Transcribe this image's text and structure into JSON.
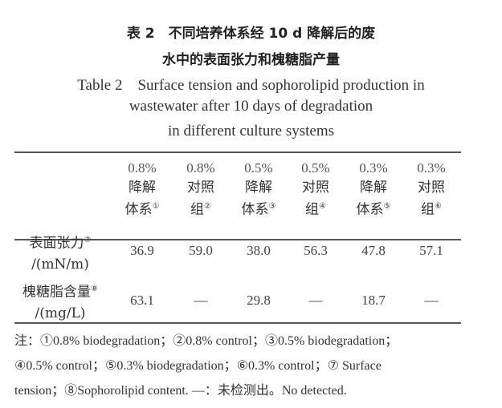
{
  "title": {
    "cn_line1": "表 2　不同培养体系经 10 d 降解后的废",
    "cn_line2": "水中的表面张力和槐糖脂产量",
    "en_line1": "Table 2　Surface tension and sophorolipid production in",
    "en_line2": "wastewater after 10 days of degradation",
    "en_line3": "in different culture systems"
  },
  "columns": [
    {
      "pct": "0.8%",
      "l1": "降解",
      "l2": "体系",
      "mark": "①"
    },
    {
      "pct": "0.8%",
      "l1": "对照",
      "l2": "组",
      "mark": "②"
    },
    {
      "pct": "0.5%",
      "l1": "降解",
      "l2": "体系",
      "mark": "③"
    },
    {
      "pct": "0.5%",
      "l1": "对照",
      "l2": "组",
      "mark": "④"
    },
    {
      "pct": "0.3%",
      "l1": "降解",
      "l2": "体系",
      "mark": "⑤"
    },
    {
      "pct": "0.3%",
      "l1": "对照",
      "l2": "组",
      "mark": "⑥"
    }
  ],
  "rows": [
    {
      "label": "表面张力",
      "mark": "⑦",
      "unit": "/(mN/m)",
      "values": [
        "36.9",
        "59.0",
        "38.0",
        "56.3",
        "47.8",
        "57.1"
      ]
    },
    {
      "label": "槐糖脂含量",
      "mark": "⑧",
      "unit": "/(mg/L)",
      "values": [
        "63.1",
        "—",
        "29.8",
        "—",
        "18.7",
        "—"
      ]
    }
  ],
  "notes": [
    "注：①0.8% biodegradation；②0.8% control；③0.5% biodegradation；",
    "④0.5% control；⑤0.3% biodegradation；⑥0.3% control；⑦ Surface",
    "tension；⑧Sophorolipid content. —：未检测出。No detected."
  ]
}
